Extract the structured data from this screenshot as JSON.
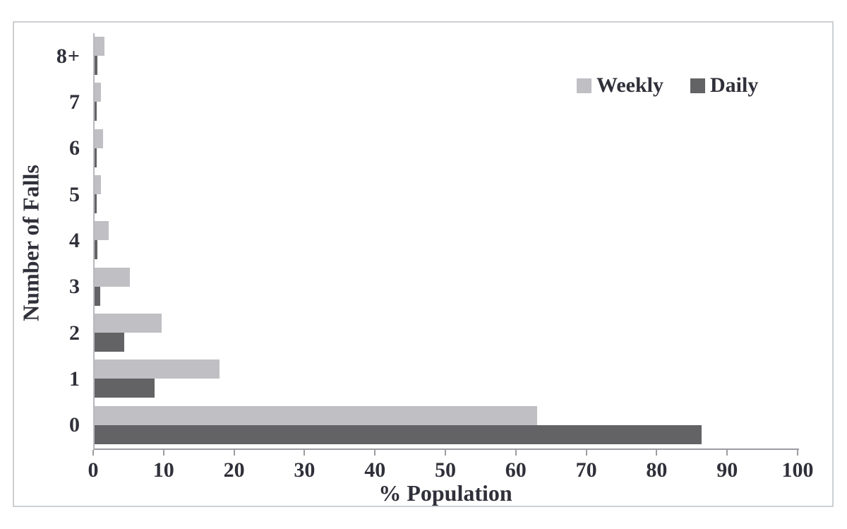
{
  "figure": {
    "background": "#ffffff",
    "border_color": "#cdd0d3",
    "text_color": "#30303a",
    "axis_color": "#9d9da1"
  },
  "chart_data": {
    "type": "bar",
    "orientation": "horizontal",
    "title": "",
    "xlabel": "% Population",
    "ylabel": "Number of Falls",
    "categories": [
      "8+",
      "7",
      "6",
      "5",
      "4",
      "3",
      "2",
      "1",
      "0"
    ],
    "series": [
      {
        "name": "Weekly",
        "color": "#c0c0c4",
        "values": [
          1.4,
          0.9,
          1.2,
          0.9,
          2.0,
          5.0,
          9.5,
          17.7,
          62.8
        ]
      },
      {
        "name": "Daily",
        "color": "#636366",
        "values": [
          0.4,
          0.3,
          0.3,
          0.3,
          0.4,
          0.8,
          4.2,
          8.5,
          86.2
        ]
      }
    ],
    "x_ticks": [
      0,
      10,
      20,
      30,
      40,
      50,
      60,
      70,
      80,
      90,
      100
    ],
    "xlim": [
      0,
      100
    ],
    "grid": false,
    "legend_position": "top-right"
  }
}
